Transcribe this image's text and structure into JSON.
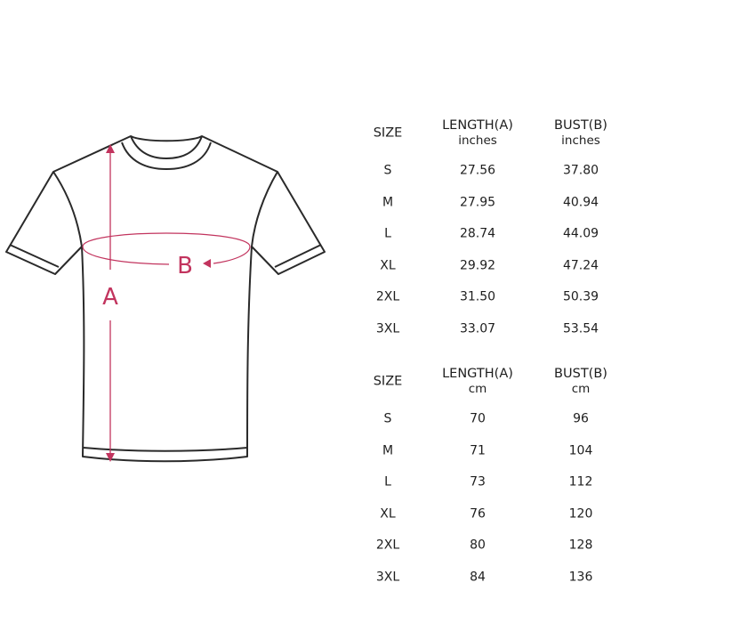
{
  "colors": {
    "outline": "#2a2a2a",
    "measure": "#c2345e",
    "text": "#1e1e1e"
  },
  "diagram": {
    "label_a": "A",
    "label_b": "B"
  },
  "tables": [
    {
      "headers": {
        "size": "SIZE",
        "length": "LENGTH(A)",
        "length_unit": "inches",
        "bust": "BUST(B)",
        "bust_unit": "inches"
      },
      "rows": [
        [
          "S",
          "27.56",
          "37.80"
        ],
        [
          "M",
          "27.95",
          "40.94"
        ],
        [
          "L",
          "28.74",
          "44.09"
        ],
        [
          "XL",
          "29.92",
          "47.24"
        ],
        [
          "2XL",
          "31.50",
          "50.39"
        ],
        [
          "3XL",
          "33.07",
          "53.54"
        ]
      ]
    },
    {
      "headers": {
        "size": "SIZE",
        "length": "LENGTH(A)",
        "length_unit": "cm",
        "bust": "BUST(B)",
        "bust_unit": "cm"
      },
      "rows": [
        [
          "S",
          "70",
          "96"
        ],
        [
          "M",
          "71",
          "104"
        ],
        [
          "L",
          "73",
          "112"
        ],
        [
          "XL",
          "76",
          "120"
        ],
        [
          "2XL",
          "80",
          "128"
        ],
        [
          "3XL",
          "84",
          "136"
        ]
      ]
    }
  ]
}
